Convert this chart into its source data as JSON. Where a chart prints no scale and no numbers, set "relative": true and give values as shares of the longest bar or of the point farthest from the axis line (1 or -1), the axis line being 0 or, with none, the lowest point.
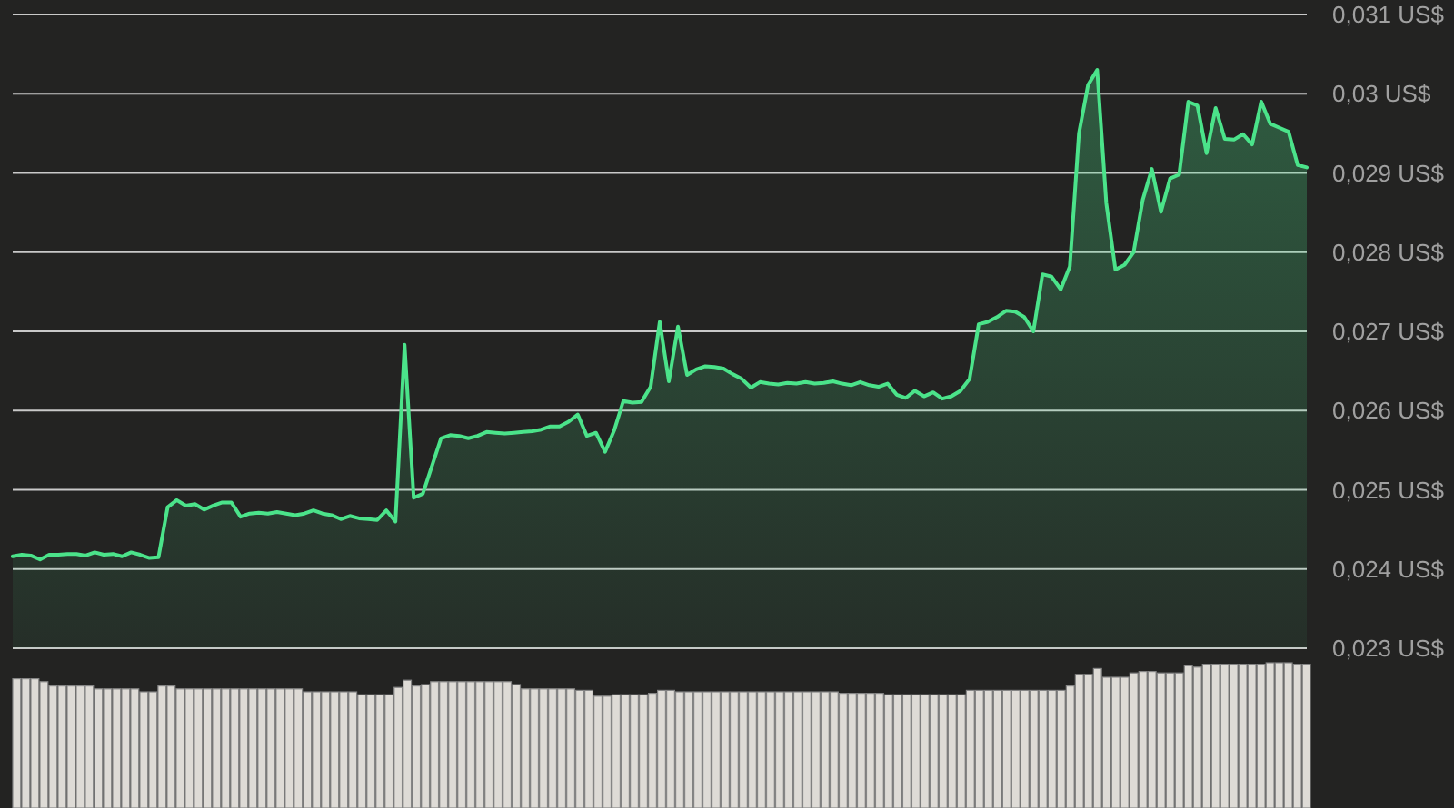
{
  "chart_data": [
    {
      "type": "area",
      "categories": [
        null,
        null,
        null,
        null,
        null,
        null,
        null,
        null,
        null,
        null,
        null,
        null,
        null,
        null,
        null,
        null,
        null,
        null,
        null,
        null,
        null,
        null,
        null,
        null,
        null,
        null,
        null,
        null,
        null,
        null,
        null,
        null,
        null,
        null,
        null,
        null,
        null,
        null,
        null,
        null,
        null,
        null,
        null,
        null,
        null,
        null,
        null,
        null,
        null,
        null,
        null,
        null,
        null,
        null,
        null,
        null,
        null,
        null,
        null,
        null,
        null,
        null,
        null,
        null,
        null,
        null,
        null,
        null,
        null,
        null,
        null,
        null,
        null,
        null,
        null,
        null,
        null,
        null,
        null,
        null,
        null,
        null,
        null,
        null,
        null,
        null,
        null,
        null,
        null,
        null,
        null,
        null,
        null,
        null,
        null,
        null,
        null,
        null,
        null,
        null,
        null,
        null,
        null,
        null,
        null,
        null,
        null,
        null,
        null,
        null,
        null,
        null,
        null,
        null,
        null,
        null,
        null,
        null,
        null,
        null,
        null,
        null,
        null,
        null,
        null,
        null,
        null,
        null,
        null,
        null,
        null,
        null,
        null,
        null,
        null,
        null,
        null,
        null,
        null,
        null,
        null,
        null,
        null
      ],
      "values": [
        0.02416,
        0.02418,
        0.02417,
        0.02412,
        0.02418,
        0.02418,
        0.02419,
        0.02419,
        0.02417,
        0.02421,
        0.02418,
        0.02419,
        0.02416,
        0.02421,
        0.02418,
        0.02414,
        0.02415,
        0.02478,
        0.02487,
        0.0248,
        0.02482,
        0.02475,
        0.0248,
        0.02484,
        0.02484,
        0.02466,
        0.0247,
        0.02471,
        0.0247,
        0.02472,
        0.0247,
        0.02468,
        0.0247,
        0.02474,
        0.0247,
        0.02468,
        0.02463,
        0.02467,
        0.02464,
        0.02463,
        0.02462,
        0.02474,
        0.0246,
        0.02683,
        0.0249,
        0.02495,
        0.0253,
        0.02565,
        0.02569,
        0.02568,
        0.02565,
        0.02568,
        0.02573,
        0.02572,
        0.02571,
        0.02572,
        0.02573,
        0.02574,
        0.02576,
        0.0258,
        0.0258,
        0.02586,
        0.02595,
        0.02568,
        0.02572,
        0.02548,
        0.02575,
        0.02612,
        0.0261,
        0.02611,
        0.0263,
        0.02712,
        0.02637,
        0.02706,
        0.02645,
        0.02652,
        0.02656,
        0.02655,
        0.02653,
        0.02646,
        0.0264,
        0.02629,
        0.02636,
        0.02634,
        0.02633,
        0.02635,
        0.02634,
        0.02636,
        0.02634,
        0.02635,
        0.02637,
        0.02634,
        0.02632,
        0.02636,
        0.02632,
        0.0263,
        0.02634,
        0.0262,
        0.02616,
        0.02625,
        0.02618,
        0.02623,
        0.02615,
        0.02618,
        0.02625,
        0.0264,
        0.02709,
        0.02712,
        0.02718,
        0.02726,
        0.02725,
        0.02718,
        0.027,
        0.02772,
        0.02769,
        0.02753,
        0.02782,
        0.0295,
        0.03011,
        0.0303,
        0.02862,
        0.02778,
        0.02784,
        0.028,
        0.02866,
        0.02905,
        0.02851,
        0.02893,
        0.02898,
        0.0299,
        0.02985,
        0.02925,
        0.02982,
        0.02943,
        0.02942,
        0.02949,
        0.02936,
        0.0299,
        0.02962,
        0.02957,
        0.02952,
        0.0291,
        0.02907
      ],
      "color": "#4be38a",
      "ylim": [
        0.023,
        0.031
      ],
      "yticks": [
        {
          "value": 0.023,
          "label": "0,023 US$"
        },
        {
          "value": 0.024,
          "label": "0,024 US$"
        },
        {
          "value": 0.025,
          "label": "0,025 US$"
        },
        {
          "value": 0.026,
          "label": "0,026 US$"
        },
        {
          "value": 0.027,
          "label": "0,027 US$"
        },
        {
          "value": 0.028,
          "label": "0,028 US$"
        },
        {
          "value": 0.029,
          "label": "0,029 US$"
        },
        {
          "value": 0.03,
          "label": "0,03 US$"
        },
        {
          "value": 0.031,
          "label": "0,031 US$"
        }
      ],
      "grid": "y"
    },
    {
      "type": "bar",
      "relative": true,
      "categories": [
        null,
        null,
        null,
        null,
        null,
        null,
        null,
        null,
        null,
        null,
        null,
        null,
        null,
        null,
        null,
        null,
        null,
        null,
        null,
        null,
        null,
        null,
        null,
        null,
        null,
        null,
        null,
        null,
        null,
        null,
        null,
        null,
        null,
        null,
        null,
        null,
        null,
        null,
        null,
        null,
        null,
        null,
        null,
        null,
        null,
        null,
        null,
        null,
        null,
        null,
        null,
        null,
        null,
        null,
        null,
        null,
        null,
        null,
        null,
        null,
        null,
        null,
        null,
        null,
        null,
        null,
        null,
        null,
        null,
        null,
        null,
        null,
        null,
        null,
        null,
        null,
        null,
        null,
        null,
        null,
        null,
        null,
        null,
        null,
        null,
        null,
        null,
        null,
        null,
        null,
        null,
        null,
        null,
        null,
        null,
        null,
        null,
        null,
        null,
        null,
        null,
        null,
        null,
        null,
        null,
        null,
        null,
        null,
        null,
        null,
        null,
        null,
        null,
        null,
        null,
        null,
        null,
        null,
        null,
        null,
        null,
        null,
        null,
        null,
        null,
        null,
        null,
        null,
        null,
        null,
        null,
        null,
        null,
        null,
        null,
        null,
        null,
        null,
        null,
        null,
        null,
        null,
        null
      ],
      "values": [
        0.89,
        0.89,
        0.89,
        0.87,
        0.84,
        0.84,
        0.84,
        0.84,
        0.84,
        0.82,
        0.82,
        0.82,
        0.82,
        0.82,
        0.8,
        0.8,
        0.84,
        0.84,
        0.82,
        0.82,
        0.82,
        0.82,
        0.82,
        0.82,
        0.82,
        0.82,
        0.82,
        0.82,
        0.82,
        0.82,
        0.82,
        0.82,
        0.8,
        0.8,
        0.8,
        0.8,
        0.8,
        0.8,
        0.78,
        0.78,
        0.78,
        0.78,
        0.83,
        0.88,
        0.84,
        0.85,
        0.87,
        0.87,
        0.87,
        0.87,
        0.87,
        0.87,
        0.87,
        0.87,
        0.87,
        0.85,
        0.82,
        0.82,
        0.82,
        0.82,
        0.82,
        0.82,
        0.81,
        0.81,
        0.77,
        0.77,
        0.78,
        0.78,
        0.78,
        0.78,
        0.79,
        0.81,
        0.81,
        0.8,
        0.8,
        0.8,
        0.8,
        0.8,
        0.8,
        0.8,
        0.8,
        0.8,
        0.8,
        0.8,
        0.8,
        0.8,
        0.8,
        0.8,
        0.8,
        0.8,
        0.8,
        0.79,
        0.79,
        0.79,
        0.79,
        0.79,
        0.78,
        0.78,
        0.78,
        0.78,
        0.78,
        0.78,
        0.78,
        0.78,
        0.78,
        0.81,
        0.81,
        0.81,
        0.81,
        0.81,
        0.81,
        0.81,
        0.81,
        0.81,
        0.81,
        0.81,
        0.84,
        0.92,
        0.92,
        0.96,
        0.9,
        0.9,
        0.9,
        0.93,
        0.94,
        0.94,
        0.93,
        0.93,
        0.93,
        0.98,
        0.97,
        0.99,
        0.99,
        0.99,
        0.99,
        0.99,
        0.99,
        0.99,
        1,
        1,
        1,
        0.99,
        0.99
      ],
      "color": "#dedbd6"
    }
  ]
}
